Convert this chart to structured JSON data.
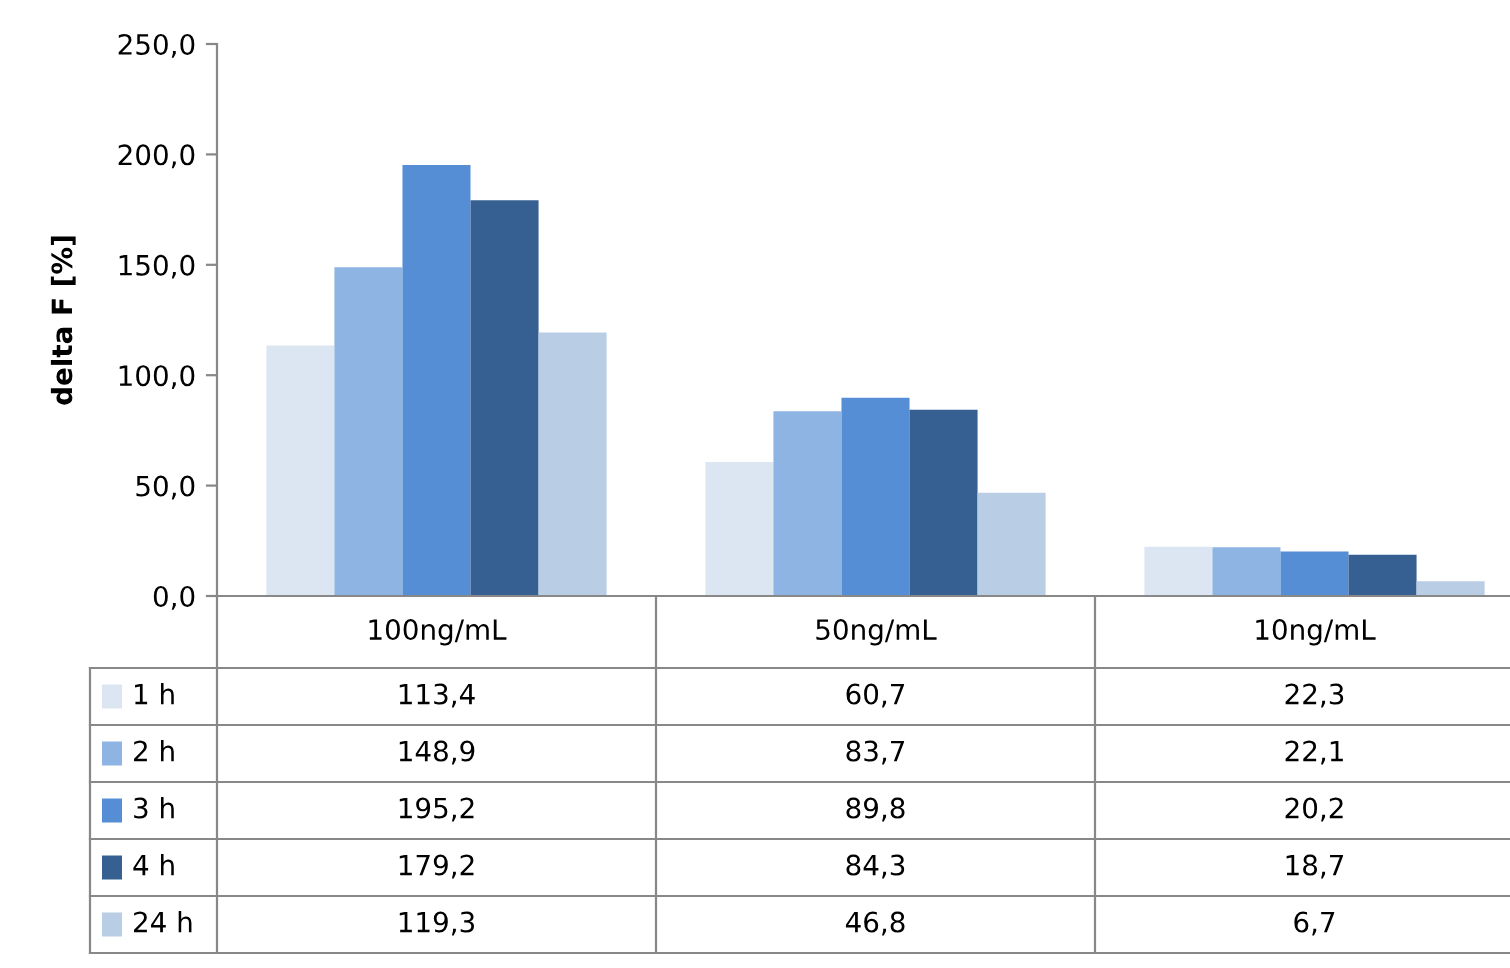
{
  "chart_data": {
    "type": "bar",
    "ylabel": "delta F [%]",
    "categories": [
      "100ng/mL",
      "50ng/mL",
      "10ng/mL"
    ],
    "series": [
      {
        "name": "1 h",
        "color": "#dce6f2",
        "values": [
          113.4,
          60.7,
          22.3
        ],
        "value_labels": [
          "113,4",
          "60,7",
          "22,3"
        ]
      },
      {
        "name": "2 h",
        "color": "#8db4e2",
        "values": [
          148.9,
          83.7,
          22.1
        ],
        "value_labels": [
          "148,9",
          "83,7",
          "22,1"
        ]
      },
      {
        "name": "3 h",
        "color": "#558ed5",
        "values": [
          195.2,
          89.8,
          20.2
        ],
        "value_labels": [
          "195,2",
          "89,8",
          "20,2"
        ]
      },
      {
        "name": "4 h",
        "color": "#376092",
        "values": [
          179.2,
          84.3,
          18.7
        ],
        "value_labels": [
          "179,2",
          "84,3",
          "18,7"
        ]
      },
      {
        "name": "24 h",
        "color": "#b9cde5",
        "values": [
          119.3,
          46.8,
          6.7
        ],
        "value_labels": [
          "119,3",
          "46,8",
          "6,7"
        ]
      }
    ],
    "ylim": [
      0,
      250
    ],
    "yticks": [
      {
        "value": 0,
        "label": "0,0"
      },
      {
        "value": 50,
        "label": "50,0"
      },
      {
        "value": 100,
        "label": "100,0"
      },
      {
        "value": 150,
        "label": "150,0"
      },
      {
        "value": 200,
        "label": "200,0"
      },
      {
        "value": 250,
        "label": "250,0"
      }
    ],
    "grid": false,
    "legend": "bottom"
  }
}
